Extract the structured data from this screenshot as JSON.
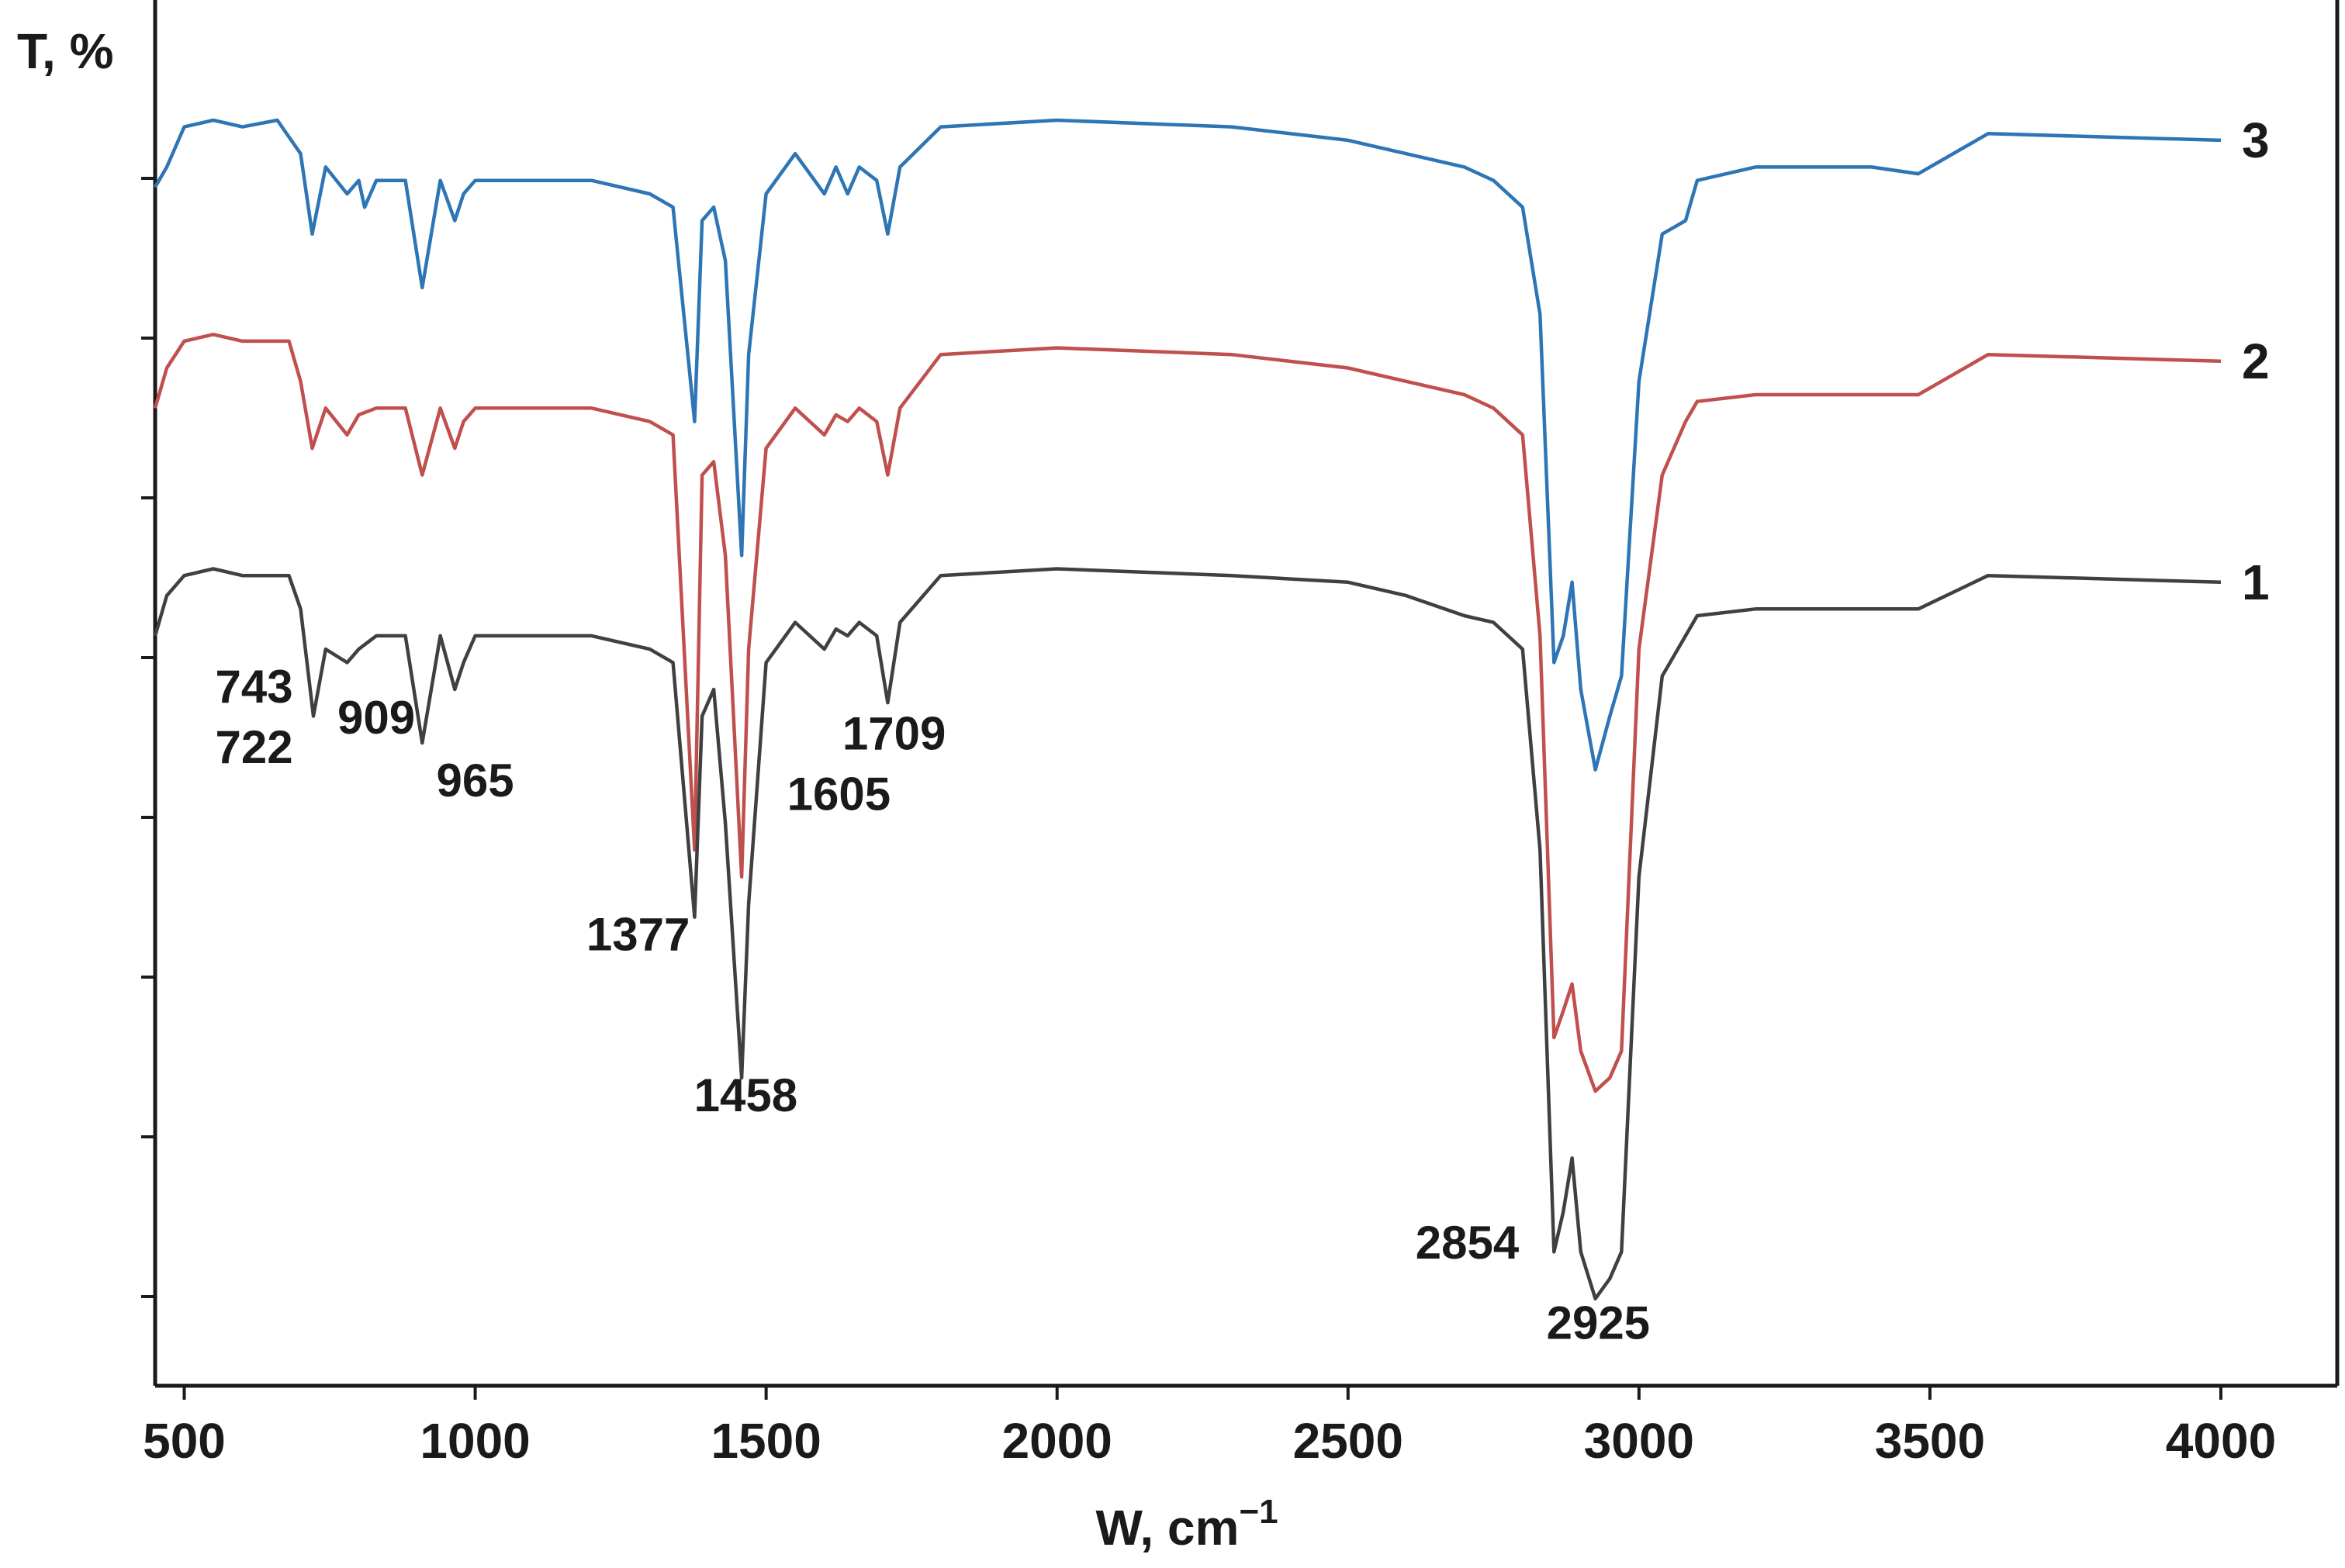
{
  "chart_data": {
    "type": "line",
    "title": "",
    "xlabel": "W, cm",
    "xlabel_sup": "−1",
    "ylabel": "T, %",
    "xlim": [
      450,
      4200
    ],
    "ylim": [
      0,
      100
    ],
    "x_ticks": [
      500,
      1000,
      1500,
      2000,
      2500,
      3000,
      3500,
      4000
    ],
    "x_tick_labels": [
      "500",
      "1000",
      "1500",
      "2000",
      "2500",
      "3000",
      "3500",
      "4000"
    ],
    "y_tick_count": 8,
    "grid": false,
    "legend": "right-edge numbers",
    "series": [
      {
        "name": "3",
        "color": "#2e75b6",
        "points": [
          [
            450,
            89.5
          ],
          [
            470,
            91
          ],
          [
            500,
            94
          ],
          [
            550,
            94.5
          ],
          [
            600,
            94
          ],
          [
            660,
            94.5
          ],
          [
            700,
            92
          ],
          [
            720,
            86
          ],
          [
            743,
            91
          ],
          [
            780,
            89
          ],
          [
            800,
            90
          ],
          [
            810,
            88
          ],
          [
            830,
            90
          ],
          [
            880,
            90
          ],
          [
            909,
            82
          ],
          [
            940,
            90
          ],
          [
            965,
            87
          ],
          [
            980,
            89
          ],
          [
            1000,
            90
          ],
          [
            1100,
            90
          ],
          [
            1200,
            90
          ],
          [
            1300,
            89
          ],
          [
            1340,
            88
          ],
          [
            1377,
            72
          ],
          [
            1390,
            87
          ],
          [
            1410,
            88
          ],
          [
            1430,
            84
          ],
          [
            1458,
            62
          ],
          [
            1470,
            77
          ],
          [
            1500,
            89
          ],
          [
            1550,
            92
          ],
          [
            1600,
            89
          ],
          [
            1620,
            91
          ],
          [
            1640,
            89
          ],
          [
            1660,
            91
          ],
          [
            1690,
            90
          ],
          [
            1709,
            86
          ],
          [
            1730,
            91
          ],
          [
            1800,
            94
          ],
          [
            2000,
            94.5
          ],
          [
            2300,
            94
          ],
          [
            2500,
            93
          ],
          [
            2600,
            92
          ],
          [
            2700,
            91
          ],
          [
            2750,
            90
          ],
          [
            2800,
            88
          ],
          [
            2830,
            80
          ],
          [
            2854,
            54
          ],
          [
            2870,
            56
          ],
          [
            2885,
            60
          ],
          [
            2900,
            52
          ],
          [
            2925,
            46
          ],
          [
            2950,
            50
          ],
          [
            2970,
            53
          ],
          [
            3000,
            75
          ],
          [
            3040,
            86
          ],
          [
            3080,
            87
          ],
          [
            3100,
            90
          ],
          [
            3200,
            91
          ],
          [
            3400,
            91
          ],
          [
            3480,
            90.5
          ],
          [
            3600,
            93.5
          ],
          [
            4000,
            93
          ]
        ]
      },
      {
        "name": "2",
        "color": "#c0504d",
        "points": [
          [
            450,
            73
          ],
          [
            470,
            76
          ],
          [
            500,
            78
          ],
          [
            550,
            78.5
          ],
          [
            600,
            78
          ],
          [
            680,
            78
          ],
          [
            700,
            75
          ],
          [
            720,
            70
          ],
          [
            743,
            73
          ],
          [
            780,
            71
          ],
          [
            800,
            72.5
          ],
          [
            830,
            73
          ],
          [
            880,
            73
          ],
          [
            909,
            68
          ],
          [
            940,
            73
          ],
          [
            965,
            70
          ],
          [
            980,
            72
          ],
          [
            1000,
            73
          ],
          [
            1100,
            73
          ],
          [
            1200,
            73
          ],
          [
            1300,
            72
          ],
          [
            1340,
            71
          ],
          [
            1377,
            40
          ],
          [
            1390,
            68
          ],
          [
            1410,
            69
          ],
          [
            1430,
            62
          ],
          [
            1458,
            38
          ],
          [
            1470,
            55
          ],
          [
            1500,
            70
          ],
          [
            1550,
            73
          ],
          [
            1600,
            71
          ],
          [
            1620,
            72.5
          ],
          [
            1640,
            72
          ],
          [
            1660,
            73
          ],
          [
            1690,
            72
          ],
          [
            1709,
            68
          ],
          [
            1730,
            73
          ],
          [
            1800,
            77
          ],
          [
            2000,
            77.5
          ],
          [
            2300,
            77
          ],
          [
            2500,
            76
          ],
          [
            2600,
            75
          ],
          [
            2700,
            74
          ],
          [
            2750,
            73
          ],
          [
            2800,
            71
          ],
          [
            2830,
            56
          ],
          [
            2854,
            26
          ],
          [
            2870,
            28
          ],
          [
            2885,
            30
          ],
          [
            2900,
            25
          ],
          [
            2925,
            22
          ],
          [
            2950,
            23
          ],
          [
            2970,
            25
          ],
          [
            3000,
            55
          ],
          [
            3040,
            68
          ],
          [
            3080,
            72
          ],
          [
            3100,
            73.5
          ],
          [
            3200,
            74
          ],
          [
            3400,
            74
          ],
          [
            3480,
            74
          ],
          [
            3600,
            77
          ],
          [
            4000,
            76.5
          ]
        ]
      },
      {
        "name": "1",
        "color": "#404040",
        "points": [
          [
            450,
            56
          ],
          [
            470,
            59
          ],
          [
            500,
            60.5
          ],
          [
            550,
            61
          ],
          [
            600,
            60.5
          ],
          [
            680,
            60.5
          ],
          [
            700,
            58
          ],
          [
            722,
            50
          ],
          [
            743,
            55
          ],
          [
            780,
            54
          ],
          [
            800,
            55
          ],
          [
            830,
            56
          ],
          [
            880,
            56
          ],
          [
            909,
            48
          ],
          [
            940,
            56
          ],
          [
            965,
            52
          ],
          [
            980,
            54
          ],
          [
            1000,
            56
          ],
          [
            1100,
            56
          ],
          [
            1200,
            56
          ],
          [
            1300,
            55
          ],
          [
            1340,
            54
          ],
          [
            1377,
            35
          ],
          [
            1390,
            50
          ],
          [
            1410,
            52
          ],
          [
            1430,
            42
          ],
          [
            1458,
            23
          ],
          [
            1470,
            36
          ],
          [
            1500,
            54
          ],
          [
            1550,
            57
          ],
          [
            1600,
            55
          ],
          [
            1620,
            56.5
          ],
          [
            1640,
            56
          ],
          [
            1660,
            57
          ],
          [
            1690,
            56
          ],
          [
            1709,
            51
          ],
          [
            1730,
            57
          ],
          [
            1800,
            60.5
          ],
          [
            2000,
            61
          ],
          [
            2300,
            60.5
          ],
          [
            2500,
            60
          ],
          [
            2600,
            59
          ],
          [
            2700,
            57.5
          ],
          [
            2750,
            57
          ],
          [
            2800,
            55
          ],
          [
            2830,
            40
          ],
          [
            2854,
            10
          ],
          [
            2870,
            13
          ],
          [
            2885,
            17
          ],
          [
            2900,
            10
          ],
          [
            2925,
            6.5
          ],
          [
            2950,
            8
          ],
          [
            2970,
            10
          ],
          [
            3000,
            38
          ],
          [
            3040,
            53
          ],
          [
            3080,
            56
          ],
          [
            3100,
            57.5
          ],
          [
            3200,
            58
          ],
          [
            3400,
            58
          ],
          [
            3480,
            58
          ],
          [
            3600,
            60.5
          ],
          [
            4000,
            60
          ]
        ]
      }
    ],
    "annotations": [
      {
        "text": "743",
        "x": 620,
        "y": 51
      },
      {
        "text": "722",
        "x": 620,
        "y": 46.5
      },
      {
        "text": "909",
        "x": 830,
        "y": 48.7
      },
      {
        "text": "965",
        "x": 1000,
        "y": 44
      },
      {
        "text": "1377",
        "x": 1280,
        "y": 32.5
      },
      {
        "text": "1458",
        "x": 1465,
        "y": 20.5
      },
      {
        "text": "1709",
        "x": 1720,
        "y": 47.5
      },
      {
        "text": "1605",
        "x": 1625,
        "y": 43
      },
      {
        "text": "2854",
        "x": 2705,
        "y": 9.5
      },
      {
        "text": "2925",
        "x": 2930,
        "y": 3.5
      }
    ]
  }
}
